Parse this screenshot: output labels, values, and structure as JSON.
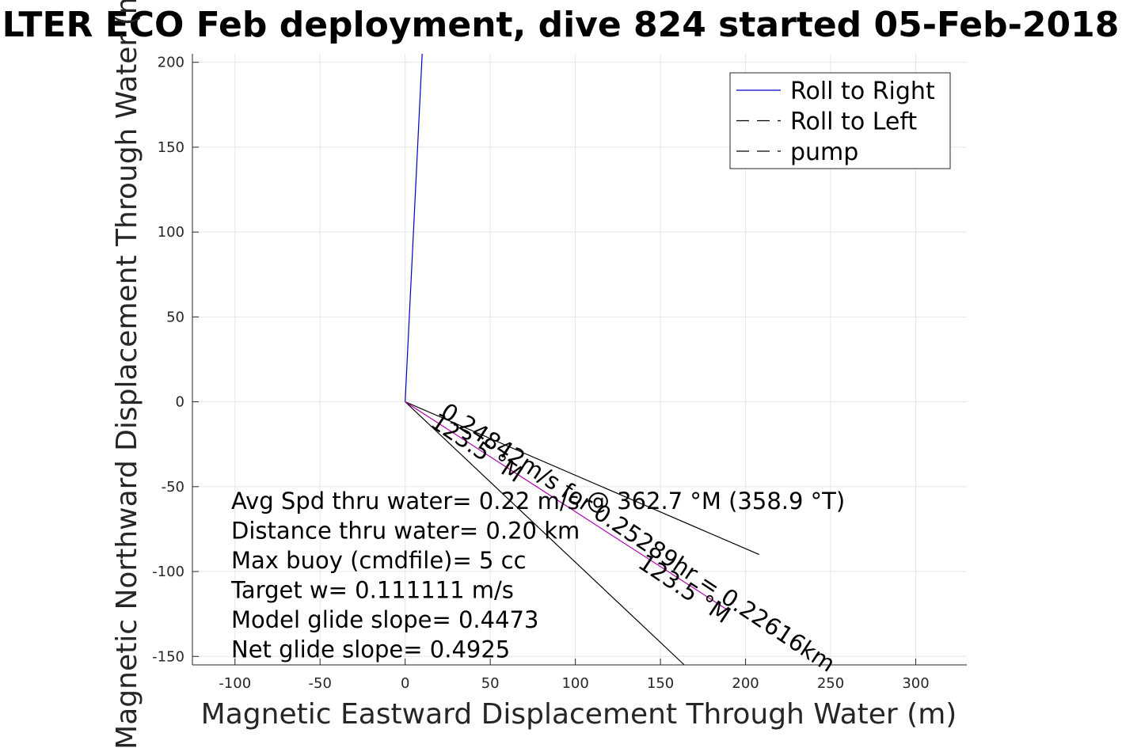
{
  "chart_data": {
    "type": "line",
    "title": "LTER ECO Feb deployment, dive 824 started 05-Feb-2018",
    "xlabel": "Magnetic Eastward Displacement Through Water (m)",
    "ylabel": "Magnetic Northward Displacement Through Water (m)",
    "xlim": [
      -125,
      330
    ],
    "ylim": [
      -155,
      205
    ],
    "xticks": [
      -100,
      -50,
      0,
      50,
      100,
      150,
      200,
      250,
      300
    ],
    "yticks": [
      -150,
      -100,
      -50,
      0,
      50,
      100,
      150,
      200
    ],
    "grid": true,
    "legend": {
      "placement": "top-right",
      "entries": [
        {
          "label": "Roll to Right",
          "color": "#0000c8",
          "dash": "solid"
        },
        {
          "label": "Roll to Left",
          "color": "#000000",
          "dash": "dashed"
        },
        {
          "label": "pump",
          "color": "#000000",
          "dash": "dashed"
        }
      ]
    },
    "series": [
      {
        "name": "Roll to Right",
        "color": "#0000c8",
        "x": [
          0,
          10
        ],
        "y": [
          0,
          205
        ]
      },
      {
        "color": "#000000",
        "x": [
          0,
          208
        ],
        "y": [
          0,
          -90
        ]
      },
      {
        "color": "#000000",
        "x": [
          0,
          164
        ],
        "y": [
          0,
          -155
        ]
      },
      {
        "color": "#b000b0",
        "x": [
          0,
          190
        ],
        "y": [
          0,
          -123
        ]
      }
    ],
    "annotations": [
      {
        "text": "0.24842m/s for 0.25289hr = 0.22616km",
        "x": 20,
        "y": -8,
        "angle": 33.5
      },
      {
        "text": "123.5 °M",
        "x": 14,
        "y": -14,
        "angle": 33.5
      },
      {
        "text": "123.5 °M",
        "x": 136,
        "y": -97,
        "angle": 33.5
      }
    ],
    "stats": [
      "Avg Spd thru water=  0.22 m/s @ 362.7 °M (358.9 °T)",
      "Distance thru water=  0.20 km",
      "Max buoy (cmdfile)= 5 cc",
      "Target w= 0.111111 m/s",
      "Model glide slope= 0.4473",
      "Net glide slope= 0.4925"
    ]
  }
}
